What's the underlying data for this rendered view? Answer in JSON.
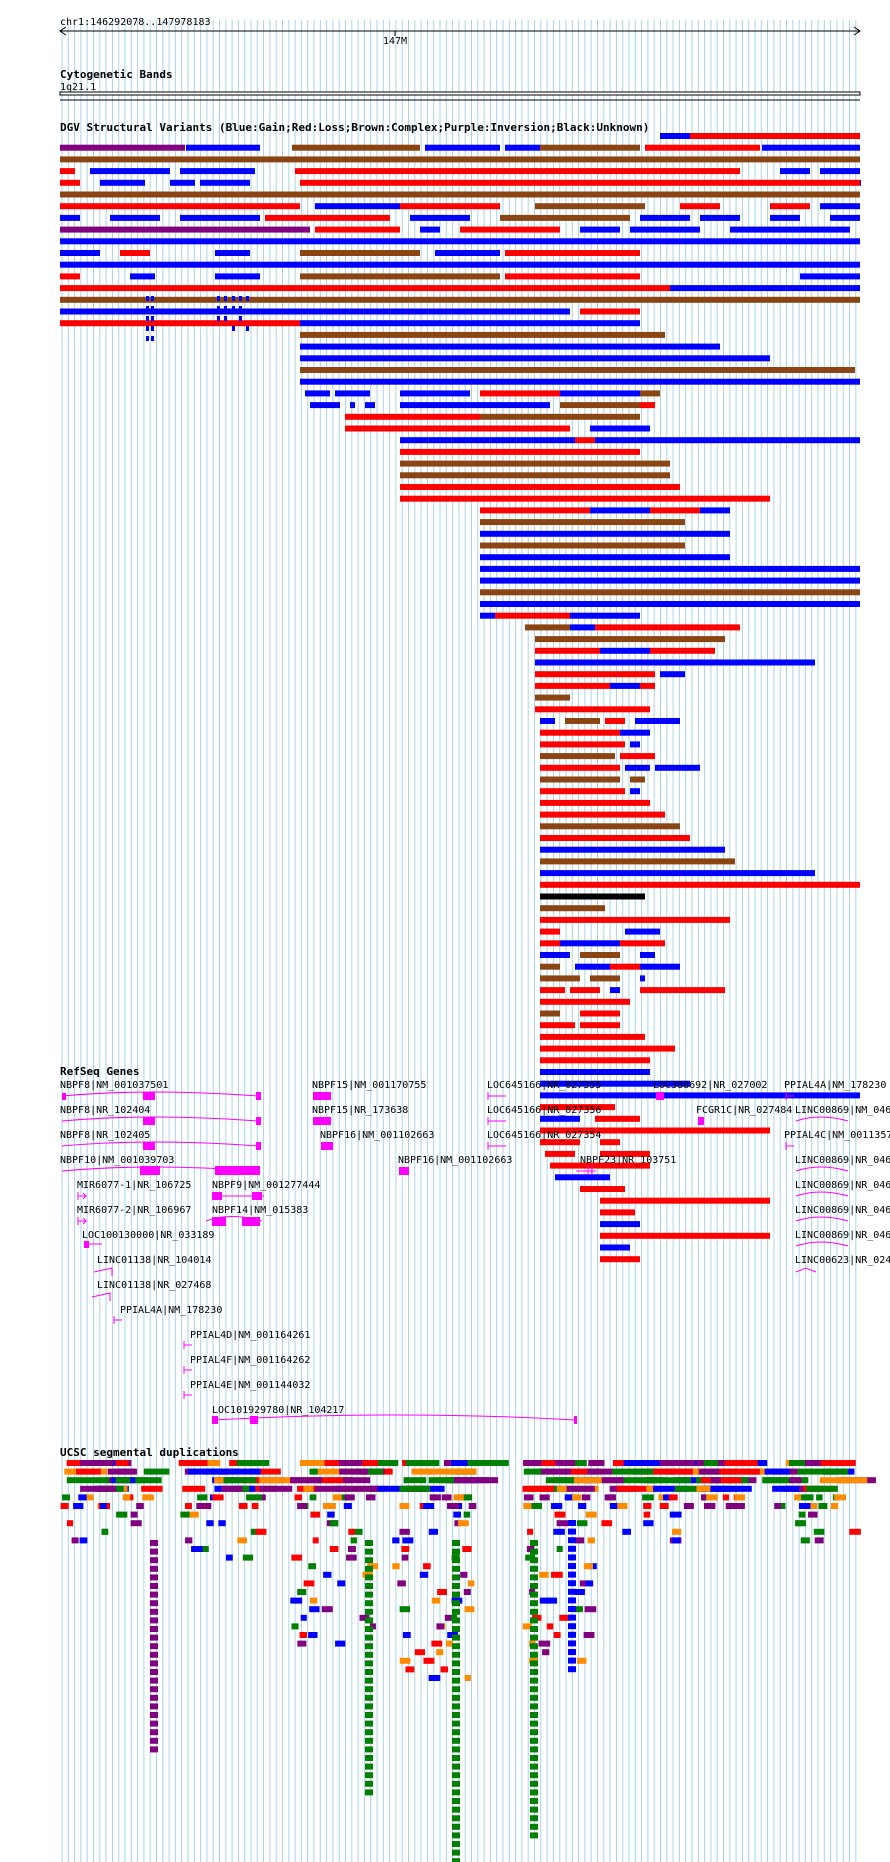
{
  "header": {
    "coords": "chr1:146292078..147978183",
    "scale_label": "147M"
  },
  "colors": {
    "grid": "#aad4e6",
    "gain": "#0000ff",
    "loss": "#ff0000",
    "complex": "#8b4513",
    "inversion": "#800080",
    "unknown": "#000000",
    "gene": "#ff00ff",
    "seg_orange": "#ff8c00",
    "seg_green": "#008000",
    "seg_purple": "#800080",
    "seg_red": "#ff0000",
    "seg_blue": "#0000ff",
    "seg_grey": "#808080"
  },
  "tracks": {
    "cytoband": {
      "title": "Cytogenetic Bands",
      "band": "1q21.1"
    },
    "dgv": {
      "title": "DGV Structural Variants (Blue:Gain;Red:Loss;Brown:Complex;Purple:Inversion;Black:Unknown)"
    },
    "refseq": {
      "title": "RefSeq Genes"
    },
    "segdup": {
      "title": "UCSC segmental duplications"
    }
  },
  "genes": [
    "NBPF8|NM_001037501",
    "NBPF8|NR_102404",
    "NBPF8|NR_102405",
    "NBPF10|NM_001039703",
    "MIR6077-1|NR_106725",
    "MIR6077-2|NR_106967",
    "LOC100130000|NR_033189",
    "LINC01138|NR_104014",
    "LINC01138|NR_027468",
    "PPIAL4A|NM_178230",
    "PPIAL4D|NM_001164261",
    "PPIAL4F|NM_001164262",
    "PPIAL4E|NM_001144032",
    "LOC101929780|NR_104217",
    "NBPF9|NM_001277444",
    "NBPF14|NM_015383",
    "NBPF15|NM_001170755",
    "NBPF15|NR_173638",
    "NBPF16|NM_001102663",
    "NBPF16|NM_001102663",
    "LOC645166|NR_027355",
    "LOC645166|NR_027356",
    "LOC645166|NR_027354",
    "NBPF23|NR_103751",
    "LOC388692|NR_027002",
    "FCGR1C|NR_027484",
    "PPIAL4A|NM_178230",
    "LINC00869|NM_046",
    "PPIAL4C|NM_0011357",
    "LINC00869|NR_046",
    "LINC00869|NR_046",
    "LINC00869|NR_046",
    "LINC00869|NR_046",
    "LINC00623|NR_024"
  ]
}
